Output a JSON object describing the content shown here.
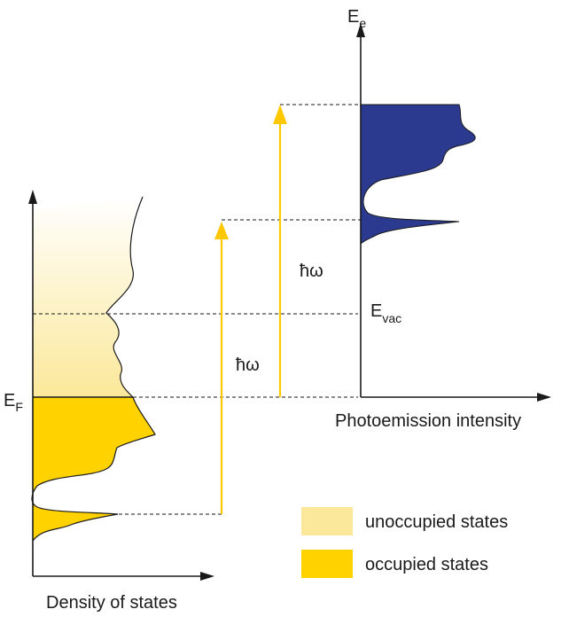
{
  "labels": {
    "ee_main": "E",
    "ee_sub": "e",
    "ef_main": "E",
    "ef_sub": "F",
    "evac_main": "E",
    "evac_sub": "vac",
    "hw_small": "ħω",
    "hw_large": "ħω",
    "x_left": "Density of states",
    "x_right": "Photoemission intensity"
  },
  "legend": {
    "unoccupied": "unoccupied states",
    "occupied": "occupied states"
  },
  "colors": {
    "occupied": "#ffd200",
    "unoccupied_top": "#ffffff",
    "unoccupied_bottom": "#fbe89a",
    "legend_unoccupied": "#fbe89a",
    "photoemission": "#2b3a8e",
    "arrow": "#ffc800"
  }
}
